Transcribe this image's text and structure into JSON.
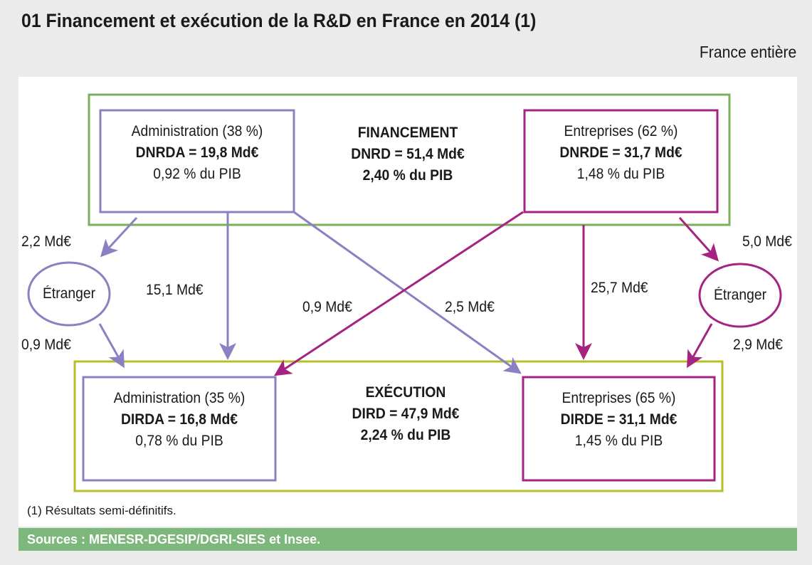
{
  "title": "01   Financement et exécution de la R&D en France en 2014 (1)",
  "scope": "France entière",
  "financement": {
    "heading": "FINANCEMENT",
    "total": "DNRD = 51,4 Md€",
    "pib": "2,40 % du PIB",
    "admin": {
      "label": "Administration (38 %)",
      "value": "DNRDA = 19,8 Md€",
      "pib": "0,92 % du PIB"
    },
    "entreprises": {
      "label": "Entreprises (62 %)",
      "value": "DNRDE = 31,7 Md€",
      "pib": "1,48 % du PIB"
    }
  },
  "execution": {
    "heading": "EXÉCUTION",
    "total": "DIRD = 47,9 Md€",
    "pib": "2,24 % du PIB",
    "admin": {
      "label": "Administration (35 %)",
      "value": "DIRDA = 16,8 Md€",
      "pib": "0,78 % du PIB"
    },
    "entreprises": {
      "label": "Entreprises (65 %)",
      "value": "DIRDE = 31,1 Md€",
      "pib": "1,45 % du PIB"
    }
  },
  "etranger_left": "Étranger",
  "etranger_right": "Étranger",
  "flows": {
    "admin_to_etranger": "2,2 Md€",
    "etranger_to_admin": "0,9 Md€",
    "admin_to_admin": "15,1 Md€",
    "entr_to_admin": "0,9 Md€",
    "admin_to_entr": "2,5 Md€",
    "entr_to_entr": "25,7 Md€",
    "entr_to_etranger": "5,0 Md€",
    "etranger_to_entr": "2,9 Md€"
  },
  "footnote": "(1) Résultats semi-définitifs.",
  "sources": "Sources : MENESR-DGESIP/DGRI-SIES et Insee.",
  "colors": {
    "green": "#7ab05a",
    "purple": "#8a80c2",
    "magenta": "#a52381",
    "olive": "#b5bf2a",
    "source_bar": "#7db77b"
  }
}
